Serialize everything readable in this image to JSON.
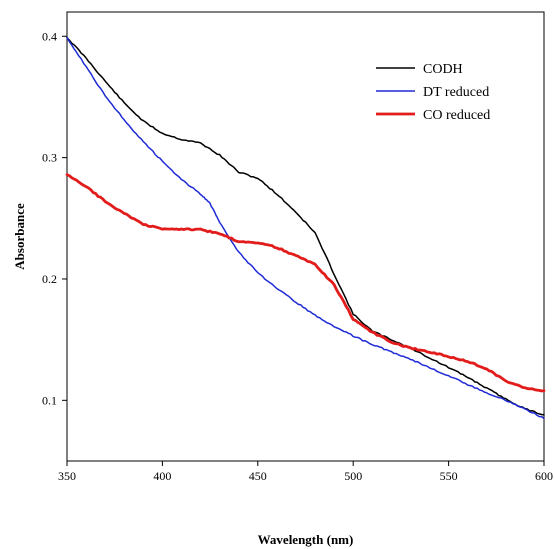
{
  "chart_data": {
    "type": "line",
    "title": "",
    "xlabel": "Wavelength (nm)",
    "ylabel": "Absorbance",
    "xlim": [
      350,
      600
    ],
    "ylim": [
      0.05,
      0.42
    ],
    "xticks": [
      350,
      400,
      450,
      500,
      550,
      600
    ],
    "xtick_labels": [
      "350",
      "400",
      "450",
      "500",
      "550",
      "600"
    ],
    "yticks": [
      0.1,
      0.2,
      0.3,
      0.4
    ],
    "ytick_labels": [
      "0.1",
      "0.2",
      "0.3",
      "0.4"
    ],
    "grid": false,
    "legend": {
      "placement": "top-right",
      "entries": [
        "CODH",
        "DT reduced",
        "CO reduced"
      ]
    },
    "series": [
      {
        "name": "CODH",
        "color": "#000000",
        "x": [
          350,
          360,
          370,
          380,
          390,
          400,
          410,
          420,
          430,
          440,
          450,
          460,
          470,
          480,
          490,
          500,
          510,
          520,
          530,
          540,
          550,
          560,
          570,
          580,
          590,
          600
        ],
        "y": [
          0.399,
          0.382,
          0.363,
          0.345,
          0.33,
          0.32,
          0.315,
          0.312,
          0.302,
          0.288,
          0.283,
          0.27,
          0.255,
          0.238,
          0.204,
          0.171,
          0.157,
          0.15,
          0.143,
          0.135,
          0.127,
          0.119,
          0.11,
          0.101,
          0.093,
          0.088
        ]
      },
      {
        "name": "DT reduced",
        "color": "#1f2bd6",
        "x": [
          350,
          360,
          370,
          380,
          390,
          400,
          410,
          420,
          425,
          430,
          440,
          450,
          460,
          470,
          480,
          490,
          500,
          510,
          520,
          530,
          540,
          550,
          560,
          570,
          580,
          590,
          600
        ],
        "y": [
          0.399,
          0.375,
          0.351,
          0.331,
          0.313,
          0.297,
          0.282,
          0.27,
          0.262,
          0.247,
          0.222,
          0.205,
          0.192,
          0.181,
          0.17,
          0.161,
          0.153,
          0.146,
          0.14,
          0.134,
          0.127,
          0.12,
          0.113,
          0.106,
          0.1,
          0.093,
          0.085
        ]
      },
      {
        "name": "CO reduced",
        "color": "#e21b1b",
        "x": [
          350,
          360,
          370,
          380,
          390,
          400,
          410,
          420,
          430,
          440,
          450,
          460,
          470,
          480,
          490,
          500,
          510,
          520,
          530,
          540,
          550,
          560,
          570,
          580,
          590,
          600
        ],
        "y": [
          0.286,
          0.276,
          0.264,
          0.254,
          0.245,
          0.241,
          0.241,
          0.241,
          0.237,
          0.231,
          0.23,
          0.226,
          0.219,
          0.212,
          0.195,
          0.167,
          0.156,
          0.148,
          0.143,
          0.14,
          0.136,
          0.132,
          0.126,
          0.116,
          0.11,
          0.108
        ]
      }
    ]
  }
}
